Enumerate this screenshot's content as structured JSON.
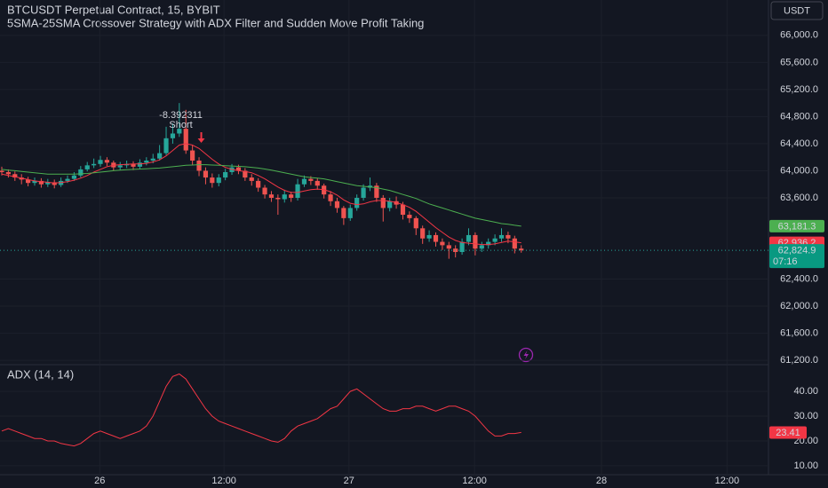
{
  "header": {
    "title": "BTCUSDT Perpetual Contract, 15, BYBIT",
    "subtitle": "5SMA-25SMA Crossover Strategy with ADX Filter and Sudden Move Profit Taking",
    "currency": "USDT"
  },
  "chart_data": [
    {
      "type": "candlestick",
      "xlim": [
        -0.27,
        116.6
      ],
      "xticks": [
        {
          "value": 14.9,
          "label": "26"
        },
        {
          "value": 33.8,
          "label": "12:00"
        },
        {
          "value": 52.8,
          "label": "27"
        },
        {
          "value": 71.9,
          "label": "12:00"
        },
        {
          "value": 91.2,
          "label": "28"
        },
        {
          "value": 110.3,
          "label": "12:00"
        }
      ],
      "ylim": [
        61149,
        66522
      ],
      "yticks": [
        {
          "value": 61200,
          "label": "61,200.0"
        },
        {
          "value": 61600,
          "label": "61,600.0"
        },
        {
          "value": 62000,
          "label": "62,000.0"
        },
        {
          "value": 62400,
          "label": "62,400.0"
        },
        {
          "value": 63600,
          "label": "63,600.0"
        },
        {
          "value": 64000,
          "label": "64,000.0"
        },
        {
          "value": 64400,
          "label": "64,400.0"
        },
        {
          "value": 64800,
          "label": "64,800.0"
        },
        {
          "value": 65200,
          "label": "65,200.0"
        },
        {
          "value": 65600,
          "label": "65,600.0"
        },
        {
          "value": 66000,
          "label": "66,000.0"
        }
      ],
      "grid": true,
      "up_color": "#26a69a",
      "down_color": "#ef5350",
      "open": [
        64000,
        63980,
        63950,
        63900,
        63870,
        63820,
        63850,
        63800,
        63830,
        63790,
        63850,
        63880,
        63930,
        64020,
        64080,
        64100,
        64160,
        64120,
        64050,
        64080,
        64100,
        64060,
        64120,
        64150,
        64180,
        64260,
        64480,
        64550,
        64620,
        64300,
        64150,
        64000,
        63900,
        63820,
        63900,
        63980,
        64050,
        64000,
        63900,
        63850,
        63750,
        63650,
        63600,
        63580,
        63650,
        63600,
        63800,
        63880,
        63850,
        63780,
        63650,
        63550,
        63450,
        63300,
        63450,
        63600,
        63750,
        63780,
        63600,
        63450,
        63550,
        63500,
        63350,
        63300,
        63150,
        63000,
        63050,
        62950,
        62900,
        62850,
        62800,
        62950,
        63050,
        62850,
        62900,
        62950,
        63000,
        63050,
        63000,
        62850
      ],
      "high": [
        64060,
        64020,
        63990,
        63950,
        63910,
        63900,
        63890,
        63880,
        63870,
        63900,
        63930,
        63980,
        64070,
        64130,
        64180,
        64220,
        64200,
        64150,
        64130,
        64150,
        64140,
        64170,
        64200,
        64250,
        64380,
        64650,
        64700,
        65000,
        64900,
        64380,
        64200,
        64050,
        63960,
        63950,
        64030,
        64100,
        64090,
        64040,
        63950,
        63890,
        63790,
        63700,
        63650,
        63720,
        63690,
        63880,
        63930,
        63920,
        63890,
        63810,
        63700,
        63600,
        63480,
        63500,
        63650,
        63800,
        63900,
        63820,
        63640,
        63600,
        63620,
        63540,
        63400,
        63330,
        63190,
        63120,
        63090,
        63000,
        62950,
        62900,
        63000,
        63150,
        63090,
        62950,
        63000,
        63060,
        63150,
        63100,
        63040,
        62900
      ],
      "low": [
        63930,
        63900,
        63850,
        63800,
        63770,
        63780,
        63750,
        63760,
        63740,
        63760,
        63820,
        63850,
        63900,
        63990,
        64040,
        64060,
        64070,
        64000,
        64010,
        64040,
        64010,
        64030,
        64080,
        64110,
        64150,
        64230,
        64400,
        64500,
        64250,
        64080,
        63920,
        63800,
        63750,
        63770,
        63860,
        63940,
        63950,
        63850,
        63780,
        63690,
        63590,
        63540,
        63350,
        63530,
        63540,
        63560,
        63760,
        63790,
        63720,
        63590,
        63480,
        63380,
        63200,
        63260,
        63410,
        63560,
        63700,
        63540,
        63250,
        63400,
        63440,
        63280,
        63230,
        63050,
        62920,
        62950,
        62880,
        62830,
        62700,
        62720,
        62760,
        62900,
        62750,
        62800,
        62850,
        62900,
        62950,
        62930,
        62780,
        62790
      ],
      "close": [
        63980,
        63950,
        63900,
        63870,
        63820,
        63850,
        63800,
        63830,
        63790,
        63850,
        63880,
        63930,
        64020,
        64080,
        64100,
        64160,
        64120,
        64050,
        64080,
        64100,
        64060,
        64120,
        64150,
        64180,
        64260,
        64480,
        64550,
        64620,
        64300,
        64150,
        64000,
        63900,
        63820,
        63900,
        63980,
        64050,
        64000,
        63900,
        63850,
        63750,
        63650,
        63600,
        63580,
        63650,
        63600,
        63800,
        63880,
        63850,
        63780,
        63650,
        63550,
        63450,
        63300,
        63450,
        63600,
        63750,
        63780,
        63600,
        63450,
        63550,
        63500,
        63350,
        63300,
        63150,
        63000,
        63050,
        62950,
        62900,
        62850,
        62800,
        62950,
        63050,
        62850,
        62900,
        62950,
        63000,
        63050,
        63000,
        62850,
        62824.9
      ],
      "close_labels": [
        null,
        null,
        null,
        null,
        null,
        null,
        null,
        null,
        null,
        null,
        null,
        null,
        null,
        null,
        null,
        null,
        null,
        null,
        null,
        null,
        null,
        null,
        null,
        null,
        null,
        null,
        null,
        null,
        null,
        null,
        null,
        null,
        null,
        null,
        null,
        null,
        null,
        null,
        null,
        null,
        null,
        null,
        null,
        null,
        null,
        null,
        null,
        null,
        null,
        null,
        null,
        null,
        null,
        null,
        null,
        null,
        null,
        null,
        null,
        null,
        null,
        null,
        null,
        null,
        null,
        null,
        null,
        null,
        null,
        null,
        null,
        null,
        null,
        null,
        null,
        null,
        null,
        null,
        null,
        "62,824.9"
      ],
      "countdown": "07:16",
      "signal": {
        "profit": "-8.392311",
        "label": "Short"
      },
      "series": [
        {
          "color": "#f23645",
          "values": [
            63950,
            63930,
            63910,
            63890,
            63870,
            63850,
            63840,
            63830,
            63820,
            63825,
            63840,
            63860,
            63890,
            63930,
            63980,
            64020,
            64060,
            64080,
            64090,
            64095,
            64100,
            64100,
            64110,
            64130,
            64160,
            64220,
            64300,
            64380,
            64400,
            64380,
            64330,
            64250,
            64170,
            64100,
            64050,
            64020,
            64000,
            63990,
            63970,
            63930,
            63880,
            63820,
            63760,
            63710,
            63680,
            63680,
            63700,
            63720,
            63730,
            63720,
            63690,
            63640,
            63570,
            63520,
            63500,
            63510,
            63540,
            63560,
            63560,
            63550,
            63530,
            63500,
            63460,
            63400,
            63320,
            63240,
            63160,
            63090,
            63020,
            62970,
            62940,
            62930,
            62920,
            62910,
            62910,
            62920,
            62940,
            62960,
            62950,
            62936.2
          ],
          "value_labels": [
            null,
            null,
            null,
            null,
            null,
            null,
            null,
            null,
            null,
            null,
            null,
            null,
            null,
            null,
            null,
            null,
            null,
            null,
            null,
            null,
            null,
            null,
            null,
            null,
            null,
            null,
            null,
            null,
            null,
            null,
            null,
            null,
            null,
            null,
            null,
            null,
            null,
            null,
            null,
            null,
            null,
            null,
            null,
            null,
            null,
            null,
            null,
            null,
            null,
            null,
            null,
            null,
            null,
            null,
            null,
            null,
            null,
            null,
            null,
            null,
            null,
            null,
            null,
            null,
            null,
            null,
            null,
            null,
            null,
            null,
            null,
            null,
            null,
            null,
            null,
            null,
            null,
            null,
            null,
            "62,936.2"
          ]
        },
        {
          "color": "#4caf50",
          "values": [
            64020,
            64010,
            64000,
            63990,
            63980,
            63970,
            63960,
            63950,
            63950,
            63950,
            63950,
            63950,
            63955,
            63960,
            63970,
            63980,
            63990,
            64000,
            64010,
            64015,
            64020,
            64025,
            64030,
            64035,
            64040,
            64050,
            64060,
            64070,
            64080,
            64085,
            64090,
            64090,
            64085,
            64080,
            64075,
            64070,
            64065,
            64060,
            64050,
            64040,
            64025,
            64010,
            63990,
            63970,
            63950,
            63930,
            63910,
            63900,
            63890,
            63880,
            63860,
            63840,
            63820,
            63800,
            63780,
            63770,
            63760,
            63750,
            63730,
            63710,
            63680,
            63650,
            63620,
            63590,
            63550,
            63510,
            63480,
            63450,
            63420,
            63390,
            63360,
            63330,
            63300,
            63280,
            63260,
            63240,
            63220,
            63210,
            63195,
            63181.3
          ],
          "value_labels": [
            null,
            null,
            null,
            null,
            null,
            null,
            null,
            null,
            null,
            null,
            null,
            null,
            null,
            null,
            null,
            null,
            null,
            null,
            null,
            null,
            null,
            null,
            null,
            null,
            null,
            null,
            null,
            null,
            null,
            null,
            null,
            null,
            null,
            null,
            null,
            null,
            null,
            null,
            null,
            null,
            null,
            null,
            null,
            null,
            null,
            null,
            null,
            null,
            null,
            null,
            null,
            null,
            null,
            null,
            null,
            null,
            null,
            null,
            null,
            null,
            null,
            null,
            null,
            null,
            null,
            null,
            null,
            null,
            null,
            null,
            null,
            null,
            null,
            null,
            null,
            null,
            null,
            null,
            null,
            "63,181.3"
          ]
        }
      ]
    },
    {
      "type": "line",
      "title": "ADX (14, 14)",
      "ylim": [
        6.4,
        50.4
      ],
      "yticks": [
        {
          "value": 10,
          "label": "10.00"
        },
        {
          "value": 20,
          "label": "20.00"
        },
        {
          "value": 30,
          "label": "30.00"
        },
        {
          "value": 40,
          "label": "40.00"
        }
      ],
      "grid": true,
      "series": [
        {
          "color": "#f23645",
          "values": [
            24,
            25,
            24,
            23,
            22,
            21,
            21,
            20,
            20,
            19,
            18.5,
            18,
            19,
            21,
            23,
            24,
            23,
            22,
            21,
            22,
            23,
            24,
            26,
            30,
            36,
            42,
            46,
            47,
            45,
            41,
            37,
            33,
            30,
            28,
            27,
            26,
            25,
            24,
            23,
            22,
            21,
            20,
            19.5,
            21,
            24,
            26,
            27,
            28,
            29,
            31,
            33,
            34,
            37,
            40,
            41,
            39,
            37,
            35,
            33,
            32,
            32,
            33,
            33,
            34,
            34,
            33,
            32,
            33,
            34,
            34,
            33,
            32,
            30,
            27,
            24,
            22,
            22,
            23,
            23,
            23.41
          ]
        }
      ]
    }
  ]
}
